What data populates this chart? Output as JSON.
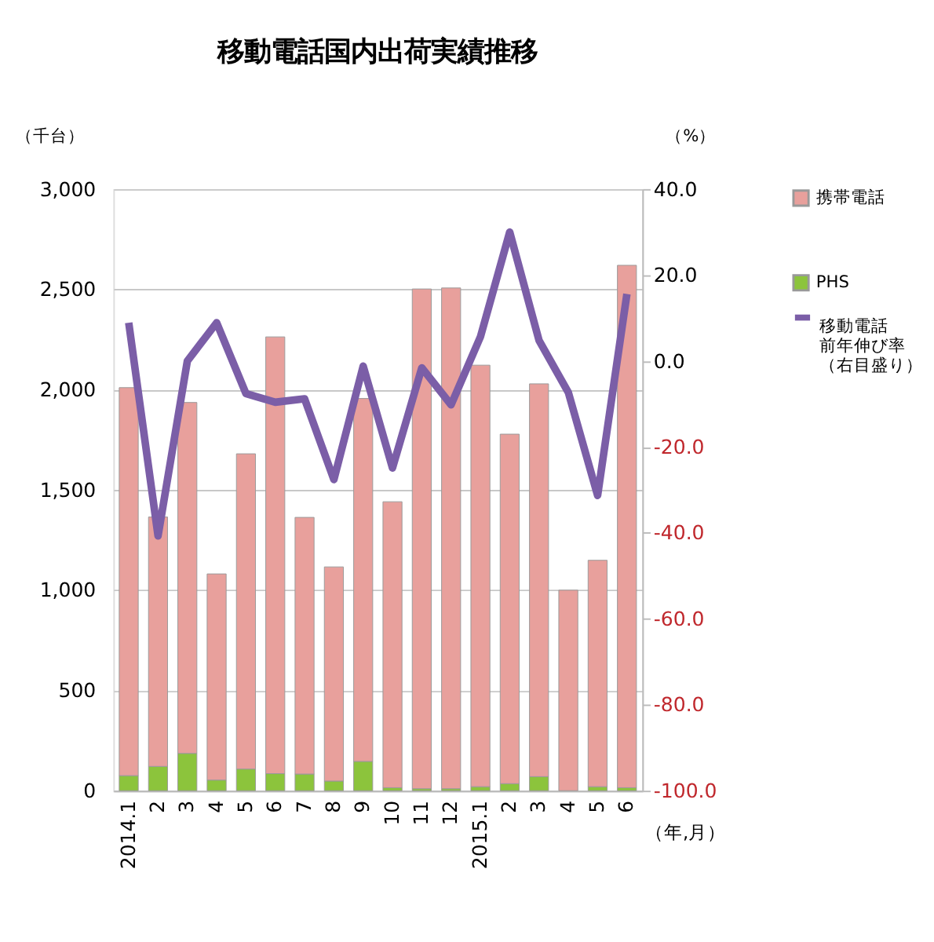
{
  "chart_data": {
    "type": "bar",
    "title": "移動電話国内出荷実績推移",
    "ylabel": "（千台）",
    "y2label": "（%）",
    "xlabel": "（年,月）",
    "categories": [
      "2014.1",
      "2",
      "3",
      "4",
      "5",
      "6",
      "7",
      "8",
      "9",
      "10",
      "11",
      "12",
      "2015.1",
      "2",
      "3",
      "4",
      "5",
      "6"
    ],
    "stacked": true,
    "series": [
      {
        "name": "PHS",
        "color": "#8cc43c",
        "values": [
          75,
          121,
          186,
          53,
          108,
          85,
          83,
          48,
          146,
          15,
          10,
          10,
          20,
          35,
          70,
          null,
          20,
          15
        ]
      },
      {
        "name": "携帯電話",
        "color": "#e8a09c",
        "values": [
          1935,
          1244,
          1750,
          1028,
          1572,
          2178,
          1280,
          1068,
          1810,
          1426,
          2492,
          2497,
          2102,
          1743,
          1959,
          1000,
          1129,
          2605
        ]
      },
      {
        "name": "移動電話前年伸び率（右目盛り）",
        "type": "line",
        "axis": "y2",
        "color": "#7b5ea7",
        "values": [
          8.9,
          -40.7,
          0.0,
          8.9,
          -7.6,
          -9.6,
          -8.8,
          -27.6,
          -1.2,
          -24.9,
          -1.6,
          -10.2,
          5.6,
          30.0,
          4.8,
          -7.3,
          -31.3,
          15.6
        ]
      }
    ],
    "ylim": [
      0,
      3000
    ],
    "yticks": [
      0,
      500,
      {
        "value": 1000,
        "label": "1,000"
      },
      {
        "value": 1500,
        "label": "1,500"
      },
      {
        "value": 2000,
        "label": "2,000"
      },
      {
        "value": 2500,
        "label": "2,500"
      },
      {
        "value": 3000,
        "label": "3,000"
      }
    ],
    "y2lim": [
      -100,
      40
    ],
    "y2ticks": [
      {
        "value": -100,
        "label": "-100.0"
      },
      {
        "value": -80,
        "label": "-80.0"
      },
      {
        "value": -60,
        "label": "-60.0"
      },
      {
        "value": -40,
        "label": "-40.0"
      },
      {
        "value": -20,
        "label": "-20.0"
      },
      {
        "value": 0,
        "label": "0.0"
      },
      {
        "value": 20,
        "label": "20.0"
      },
      {
        "value": 40,
        "label": "40.0"
      }
    ],
    "grid": "y",
    "legend": "right",
    "marker": "none",
    "line_style": "solid"
  }
}
